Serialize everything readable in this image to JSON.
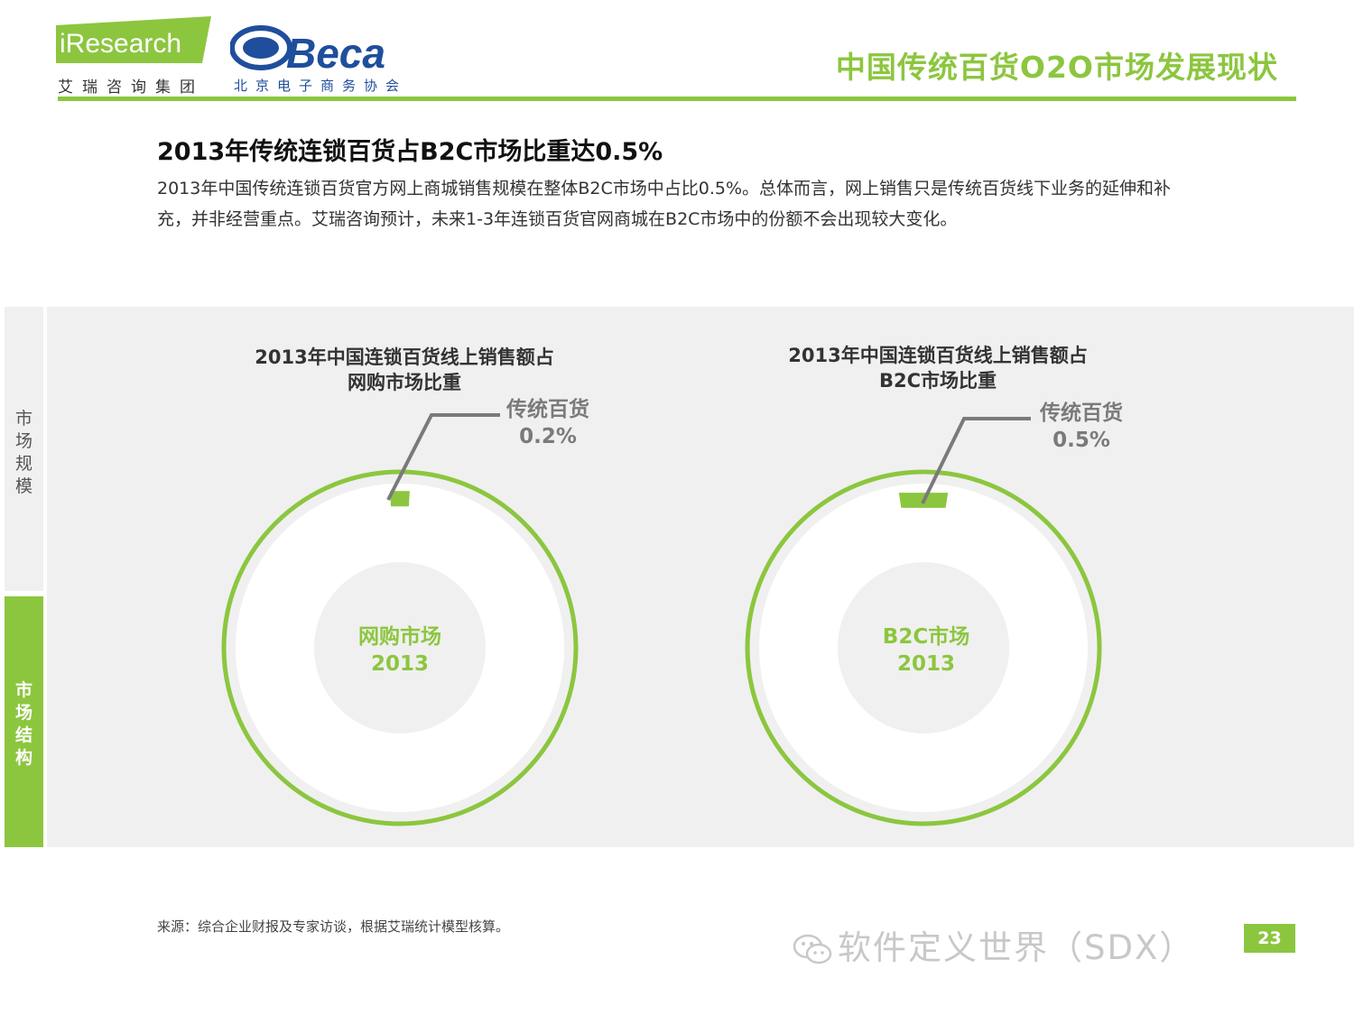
{
  "header": {
    "logo_ir_text": "iResearch",
    "logo_ir_sub": "艾瑞咨询集团",
    "logo_beca_text": "Beca",
    "logo_beca_sub": "北京电子商务协会",
    "title": "中国传统百货O2O市场发展现状"
  },
  "intro": {
    "headline": "2013年传统连锁百货占B2C市场比重达0.5%",
    "body": "2013年中国传统连锁百货官方网上商城销售规模在整体B2C市场中占比0.5%。总体而言，网上销售只是传统百货线下业务的延伸和补充，并非经营重点。艾瑞咨询预计，未来1-3年连锁百货官网商城在B2C市场中的份额不会出现较大变化。"
  },
  "sidenav": [
    {
      "label": "市场规模",
      "active": false
    },
    {
      "label": "市场结构",
      "active": true
    }
  ],
  "colors": {
    "accent": "#8cc63f",
    "panel": "#f0f0f0",
    "callout": "#7a7a7a"
  },
  "chart_data": [
    {
      "type": "pie",
      "title_line1": "2013年中国连锁百货线上销售额占",
      "title_line2": "网购市场比重",
      "center_line1": "网购市场",
      "center_line2": "2013",
      "slices": [
        {
          "label": "传统百货",
          "value": 0.2,
          "value_label": "0.2%"
        },
        {
          "label": "",
          "value": 99.8
        }
      ]
    },
    {
      "type": "pie",
      "title_line1": "2013年中国连锁百货线上销售额占",
      "title_line2": "B2C市场比重",
      "center_line1": "B2C市场",
      "center_line2": "2013",
      "slices": [
        {
          "label": "传统百货",
          "value": 0.5,
          "value_label": "0.5%"
        },
        {
          "label": "",
          "value": 99.5
        }
      ]
    }
  ],
  "footer": {
    "source": "来源：综合企业财报及专家访谈，根据艾瑞统计模型核算。",
    "watermark": "软件定义世界（SDX）",
    "page_number": "23"
  }
}
